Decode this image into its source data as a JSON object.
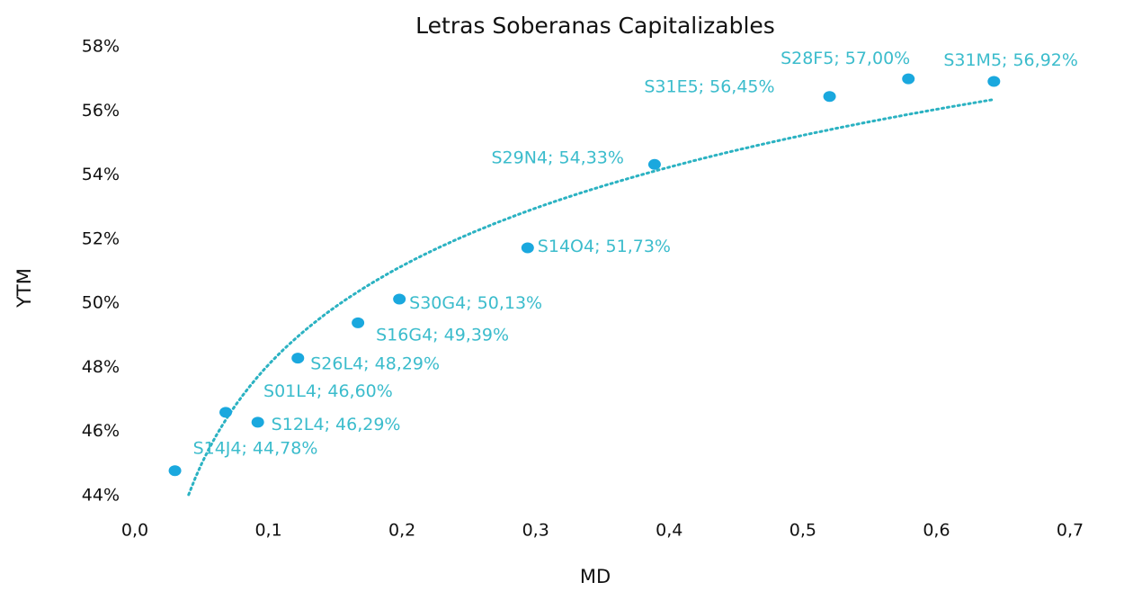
{
  "chart_data": {
    "type": "scatter",
    "title": "Letras Soberanas Capitalizables",
    "x_label": "MD",
    "y_label": "YTM",
    "series": [
      {
        "color": "#1aa8de",
        "label_color": "#3bbccc",
        "point_labels": [
          "S14J4; 44,78%",
          "S01L4; 46,60%",
          "S12L4; 46,29%",
          "S26L4; 48,29%",
          "S16G4; 49,39%",
          "S30G4; 50,13%",
          "S14O4; 51,73%",
          "S29N4; 54,33%",
          "S31E5; 56,45%",
          "S28F5; 57,00%",
          "S31M5; 56,92%"
        ],
        "x": [
          0.03,
          0.068,
          0.092,
          0.122,
          0.167,
          0.198,
          0.294,
          0.389,
          0.52,
          0.579,
          0.643
        ],
        "values": [
          44.78,
          46.6,
          46.29,
          48.29,
          49.39,
          50.13,
          51.73,
          54.33,
          56.45,
          57.0,
          56.92
        ]
      }
    ],
    "trendline": {
      "type": "logarithmic",
      "color": "#2bb2c2",
      "style": "dotted"
    },
    "xlim": [
      0,
      0.7
    ],
    "xticks": [
      {
        "value": 0,
        "label": "0,0"
      },
      {
        "value": 0.1,
        "label": "0,1"
      },
      {
        "value": 0.2,
        "label": "0,2"
      },
      {
        "value": 0.3,
        "label": "0,3"
      },
      {
        "value": 0.4,
        "label": "0,4"
      },
      {
        "value": 0.5,
        "label": "0,5"
      },
      {
        "value": 0.6,
        "label": "0,6"
      },
      {
        "value": 0.7,
        "label": "0,7"
      }
    ],
    "ylim": [
      44,
      58
    ],
    "yticks": [
      {
        "value": 44,
        "label": "44%"
      },
      {
        "value": 46,
        "label": "46%"
      },
      {
        "value": 48,
        "label": "48%"
      },
      {
        "value": 50,
        "label": "50%"
      },
      {
        "value": 52,
        "label": "52%"
      },
      {
        "value": 54,
        "label": "54%"
      },
      {
        "value": 56,
        "label": "56%"
      },
      {
        "value": 58,
        "label": "58%"
      }
    ],
    "grid": false
  }
}
